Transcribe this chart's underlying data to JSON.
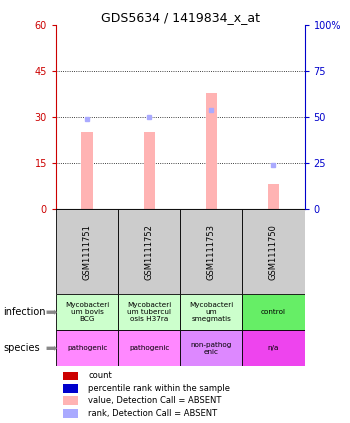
{
  "title": "GDS5634 / 1419834_x_at",
  "samples": [
    "GSM1111751",
    "GSM1111752",
    "GSM1111753",
    "GSM1111750"
  ],
  "bar_values": [
    25,
    25,
    38,
    8
  ],
  "rank_values": [
    49,
    50,
    54,
    24
  ],
  "ylim_left": [
    0,
    60
  ],
  "ylim_right": [
    0,
    100
  ],
  "yticks_left": [
    0,
    15,
    30,
    45,
    60
  ],
  "yticks_right": [
    0,
    25,
    50,
    75,
    100
  ],
  "yticklabels_right": [
    "0",
    "25",
    "50",
    "75",
    "100%"
  ],
  "bar_color": "#ffb3b3",
  "rank_color": "#aaaaff",
  "left_axis_color": "#cc0000",
  "right_axis_color": "#0000cc",
  "infection_labels": [
    "Mycobacteri\num bovis\nBCG",
    "Mycobacteri\num tubercul\nosis H37ra",
    "Mycobacteri\num\nsmegmatis",
    "control"
  ],
  "species_labels": [
    "pathogenic",
    "pathogenic",
    "non-pathog\nenic",
    "n/a"
  ],
  "infection_colors": [
    "#ccffcc",
    "#ccffcc",
    "#ccffcc",
    "#66ee66"
  ],
  "species_colors": [
    "#ff88ff",
    "#ff88ff",
    "#dd88ff",
    "#ee44ee"
  ],
  "sample_box_color": "#cccccc",
  "label_infection": "infection",
  "label_species": "species",
  "legend_colors": [
    "#cc0000",
    "#0000cc",
    "#ffb3b3",
    "#aaaaff"
  ],
  "legend_labels": [
    "count",
    "percentile rank within the sample",
    "value, Detection Call = ABSENT",
    "rank, Detection Call = ABSENT"
  ]
}
